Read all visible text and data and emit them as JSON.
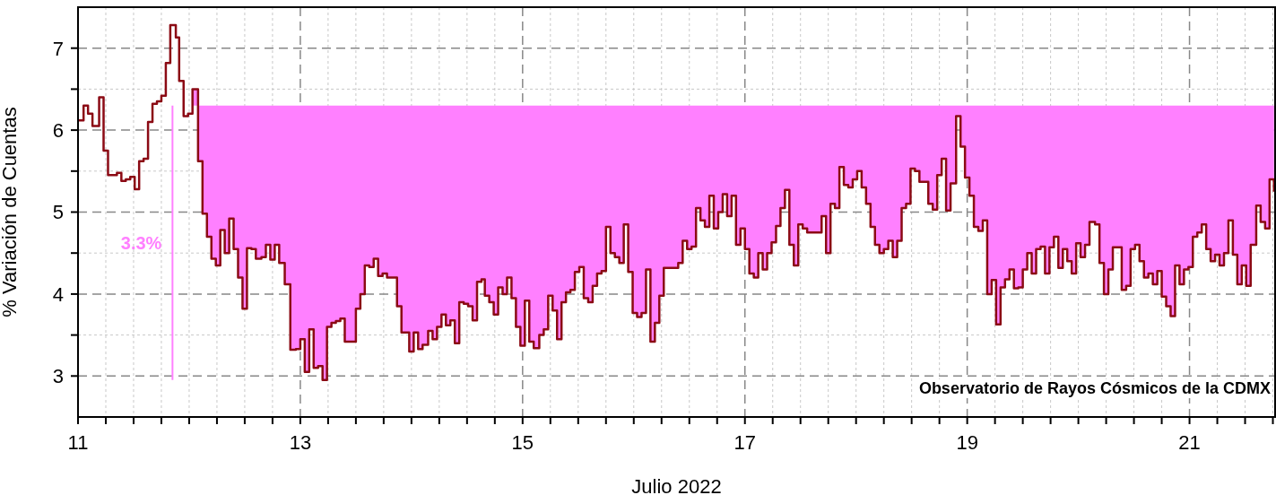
{
  "chart_data": {
    "type": "step",
    "xlabel": "Julio 2022",
    "ylabel": "% Variación de Cuentas",
    "xlim": [
      11,
      21.77
    ],
    "ylim": [
      2.5,
      7.5
    ],
    "xticks": [
      11,
      {
        "value": 11.25,
        "label": null
      },
      {
        "value": 11.5,
        "label": null
      },
      {
        "value": 11.75,
        "label": null
      },
      {
        "value": 12,
        "label": null
      },
      {
        "value": 12.25,
        "label": null
      },
      {
        "value": 12.5,
        "label": null
      },
      {
        "value": 12.75,
        "label": null
      },
      13,
      {
        "value": 13.25,
        "label": null
      },
      {
        "value": 13.5,
        "label": null
      },
      {
        "value": 13.75,
        "label": null
      },
      {
        "value": 14,
        "label": null
      },
      {
        "value": 14.25,
        "label": null
      },
      {
        "value": 14.5,
        "label": null
      },
      {
        "value": 14.75,
        "label": null
      },
      15,
      {
        "value": 15.25,
        "label": null
      },
      {
        "value": 15.5,
        "label": null
      },
      {
        "value": 15.75,
        "label": null
      },
      {
        "value": 16,
        "label": null
      },
      {
        "value": 16.25,
        "label": null
      },
      {
        "value": 16.5,
        "label": null
      },
      {
        "value": 16.75,
        "label": null
      },
      17,
      {
        "value": 17.25,
        "label": null
      },
      {
        "value": 17.5,
        "label": null
      },
      {
        "value": 17.75,
        "label": null
      },
      {
        "value": 18,
        "label": null
      },
      {
        "value": 18.25,
        "label": null
      },
      {
        "value": 18.5,
        "label": null
      },
      {
        "value": 18.75,
        "label": null
      },
      19,
      {
        "value": 19.25,
        "label": null
      },
      {
        "value": 19.5,
        "label": null
      },
      {
        "value": 19.75,
        "label": null
      },
      {
        "value": 20,
        "label": null
      },
      {
        "value": 20.25,
        "label": null
      },
      {
        "value": 20.5,
        "label": null
      },
      {
        "value": 20.75,
        "label": null
      },
      21,
      {
        "value": 21.25,
        "label": null
      },
      {
        "value": 21.5,
        "label": null
      },
      {
        "value": 21.75,
        "label": null
      }
    ],
    "yticks": [
      3,
      {
        "value": 3.5,
        "label": null
      },
      4,
      {
        "value": 4.5,
        "label": null
      },
      5,
      {
        "value": 5.5,
        "label": null
      },
      6,
      {
        "value": 6.5,
        "label": null
      },
      7
    ],
    "grid": true,
    "legend": false,
    "marker": "none",
    "line_style": "solid",
    "annotations": [
      "3.3%",
      "Observatorio de Rayos Cósmicos de la CDMX"
    ],
    "series": [
      {
        "color": "#8b0a14",
        "x": [
          11.0,
          11.05,
          11.09,
          11.13,
          11.19,
          11.23,
          11.27,
          11.35,
          11.39,
          11.43,
          11.47,
          11.51,
          11.55,
          11.59,
          11.63,
          11.67,
          11.71,
          11.75,
          11.79,
          11.83,
          11.88,
          11.91,
          11.95,
          11.99,
          12.03,
          12.08,
          12.12,
          12.16,
          12.2,
          12.24,
          12.28,
          12.32,
          12.36,
          12.4,
          12.44,
          12.48,
          12.52,
          12.56,
          12.6,
          12.65,
          12.69,
          12.73,
          12.77,
          12.81,
          12.86,
          12.91,
          12.96,
          13.0,
          13.04,
          13.08,
          13.12,
          13.16,
          13.2,
          13.24,
          13.28,
          13.32,
          13.36,
          13.4,
          13.5,
          13.54,
          13.58,
          13.62,
          13.66,
          13.7,
          13.74,
          13.78,
          13.87,
          13.91,
          13.98,
          14.02,
          14.06,
          14.1,
          14.15,
          14.19,
          14.23,
          14.27,
          14.31,
          14.35,
          14.39,
          14.43,
          14.47,
          14.51,
          14.55,
          14.59,
          14.63,
          14.66,
          14.7,
          14.74,
          14.78,
          14.82,
          14.86,
          14.9,
          14.94,
          14.98,
          15.02,
          15.06,
          15.1,
          15.15,
          15.19,
          15.23,
          15.27,
          15.31,
          15.35,
          15.39,
          15.43,
          15.47,
          15.51,
          15.55,
          15.59,
          15.63,
          15.67,
          15.71,
          15.75,
          15.79,
          15.83,
          15.87,
          15.91,
          15.95,
          15.99,
          16.03,
          16.07,
          16.11,
          16.15,
          16.19,
          16.23,
          16.27,
          16.4,
          16.44,
          16.48,
          16.52,
          16.56,
          16.6,
          16.64,
          16.68,
          16.72,
          16.76,
          16.8,
          16.84,
          16.88,
          16.92,
          16.96,
          17.0,
          17.04,
          17.08,
          17.12,
          17.16,
          17.2,
          17.24,
          17.28,
          17.32,
          17.36,
          17.4,
          17.44,
          17.48,
          17.52,
          17.56,
          17.69,
          17.73,
          17.77,
          17.81,
          17.85,
          17.89,
          17.93,
          17.97,
          18.01,
          18.05,
          18.09,
          18.13,
          18.17,
          18.21,
          18.25,
          18.29,
          18.33,
          18.37,
          18.41,
          18.45,
          18.49,
          18.53,
          18.57,
          18.65,
          18.69,
          18.73,
          18.77,
          18.81,
          18.85,
          18.9,
          18.94,
          18.98,
          19.02,
          19.06,
          19.1,
          19.14,
          19.18,
          19.22,
          19.26,
          19.3,
          19.34,
          19.38,
          19.42,
          19.46,
          19.5,
          19.54,
          19.58,
          19.62,
          19.66,
          19.7,
          19.74,
          19.78,
          19.82,
          19.86,
          19.9,
          19.94,
          19.98,
          20.02,
          20.06,
          20.1,
          20.15,
          20.19,
          20.23,
          20.27,
          20.31,
          20.39,
          20.43,
          20.47,
          20.51,
          20.55,
          20.59,
          20.63,
          20.67,
          20.71,
          20.75,
          20.79,
          20.83,
          20.87,
          20.91,
          20.95,
          20.99,
          21.03,
          21.07,
          21.11,
          21.15,
          21.19,
          21.23,
          21.27,
          21.31,
          21.35,
          21.39,
          21.43,
          21.47,
          21.51,
          21.55,
          21.6,
          21.64,
          21.68,
          21.72,
          21.76
        ],
        "values": [
          6.12,
          6.3,
          6.2,
          6.05,
          6.4,
          5.75,
          5.45,
          5.48,
          5.38,
          5.4,
          5.43,
          5.28,
          5.62,
          5.65,
          6.1,
          6.32,
          6.35,
          6.42,
          6.82,
          7.28,
          7.13,
          6.6,
          6.17,
          6.2,
          6.5,
          5.62,
          4.98,
          4.7,
          4.43,
          4.35,
          4.78,
          4.5,
          4.92,
          4.55,
          4.2,
          3.82,
          4.56,
          4.55,
          4.43,
          4.45,
          4.6,
          4.42,
          4.6,
          4.38,
          4.12,
          3.32,
          3.33,
          3.45,
          3.05,
          3.57,
          3.1,
          3.12,
          2.95,
          3.6,
          3.65,
          3.67,
          3.7,
          3.42,
          3.82,
          4.0,
          4.35,
          4.33,
          4.43,
          4.22,
          4.25,
          4.2,
          3.85,
          3.53,
          3.3,
          3.53,
          3.33,
          3.38,
          3.55,
          3.45,
          3.6,
          3.75,
          3.62,
          3.68,
          3.4,
          3.9,
          3.88,
          3.85,
          3.68,
          4.15,
          4.18,
          3.98,
          3.9,
          3.75,
          4.08,
          4.0,
          4.2,
          3.95,
          3.6,
          3.37,
          3.92,
          3.42,
          3.34,
          3.5,
          3.57,
          3.98,
          3.8,
          3.45,
          3.9,
          4.02,
          4.05,
          4.27,
          4.33,
          3.95,
          3.9,
          4.1,
          4.25,
          4.28,
          4.82,
          4.5,
          4.45,
          4.38,
          4.85,
          4.27,
          3.77,
          3.72,
          3.77,
          4.3,
          3.42,
          3.65,
          3.98,
          4.32,
          4.38,
          4.65,
          4.55,
          4.58,
          5.05,
          4.9,
          4.82,
          5.2,
          4.8,
          5.0,
          5.22,
          4.95,
          5.2,
          4.6,
          4.8,
          4.55,
          4.25,
          4.2,
          4.5,
          4.3,
          4.5,
          4.63,
          4.83,
          5.05,
          5.27,
          4.6,
          4.35,
          4.85,
          4.8,
          4.75,
          4.95,
          4.5,
          5.1,
          5.05,
          5.55,
          5.33,
          5.3,
          5.4,
          5.5,
          5.3,
          5.1,
          4.82,
          4.6,
          4.5,
          4.55,
          4.65,
          4.45,
          4.65,
          5.05,
          5.1,
          5.53,
          5.5,
          5.37,
          5.1,
          5.03,
          5.45,
          5.65,
          5.02,
          5.35,
          6.17,
          5.8,
          5.42,
          5.2,
          4.82,
          4.77,
          4.9,
          4.0,
          4.17,
          3.63,
          4.08,
          4.18,
          4.3,
          4.07,
          4.08,
          4.3,
          4.5,
          4.25,
          4.55,
          4.58,
          4.25,
          4.57,
          4.7,
          4.32,
          4.55,
          4.4,
          4.25,
          4.62,
          4.45,
          4.6,
          4.88,
          4.85,
          4.38,
          4.0,
          4.3,
          4.57,
          4.05,
          4.1,
          4.55,
          4.6,
          4.4,
          4.2,
          4.25,
          4.12,
          4.28,
          3.97,
          3.85,
          3.73,
          4.35,
          4.12,
          4.3,
          4.33,
          4.7,
          4.75,
          4.85,
          4.55,
          4.4,
          4.48,
          4.35,
          4.5,
          4.9,
          4.48,
          4.12,
          4.35,
          4.1,
          4.6,
          5.08,
          4.88,
          4.8,
          5.4,
          5.25
        ],
        "lower": [
          null,
          null,
          null,
          null,
          null,
          null,
          null,
          null,
          null,
          null,
          null,
          null,
          null,
          null,
          null,
          null,
          null,
          null,
          null,
          null,
          null,
          null,
          null,
          null,
          6.5,
          5.62,
          4.98,
          4.7,
          4.43,
          4.35,
          4.78,
          4.5,
          4.92,
          4.55,
          4.2,
          3.82,
          4.56,
          4.55,
          4.43,
          4.45,
          4.6,
          4.42,
          4.6,
          4.38,
          4.12,
          3.32,
          3.33,
          3.45,
          3.05,
          3.57,
          3.1,
          3.12,
          2.95,
          3.6,
          3.65,
          3.67,
          3.7,
          3.42,
          3.82,
          4.0,
          4.35,
          4.33,
          4.43,
          4.22,
          4.25,
          4.2,
          3.85,
          3.53,
          3.3,
          3.53,
          3.33,
          3.38,
          3.55,
          3.45,
          3.6,
          3.75,
          3.62,
          3.68,
          3.4,
          3.9,
          3.88,
          3.85,
          3.68,
          4.15,
          4.18,
          3.98,
          3.9,
          3.75,
          4.08,
          4.0,
          4.2,
          3.95,
          3.6,
          3.37,
          3.92,
          3.42,
          3.34,
          3.5,
          3.57,
          3.98,
          3.8,
          3.45,
          3.9,
          4.02,
          4.05,
          4.27,
          4.33,
          3.95,
          3.9,
          4.1,
          4.25,
          4.28,
          4.82,
          4.5,
          4.45,
          4.38,
          4.85,
          4.27,
          3.77,
          3.72,
          3.77,
          4.3,
          3.42,
          3.65,
          3.98,
          4.32,
          4.38,
          4.65,
          4.55,
          4.58,
          5.05,
          4.9,
          4.82,
          5.2,
          4.8,
          5.0,
          5.22,
          4.95,
          5.2,
          4.6,
          4.8,
          4.55,
          4.25,
          4.2,
          4.5,
          4.3,
          4.5,
          4.63,
          4.83,
          5.05,
          5.27,
          4.6,
          4.35,
          4.85,
          4.8,
          4.75,
          4.95,
          4.5,
          5.1,
          5.05,
          5.55,
          5.33,
          5.3,
          5.4,
          5.5,
          5.3,
          5.1,
          4.82,
          4.6,
          4.5,
          4.55,
          4.65,
          4.45,
          4.65,
          5.05,
          5.1,
          5.53,
          5.5,
          5.37,
          5.1,
          5.03,
          5.45,
          5.65,
          5.02,
          5.35,
          6.17,
          5.8,
          5.42,
          5.2,
          4.82,
          4.77,
          4.9,
          4.0,
          4.17,
          3.63,
          4.08,
          4.18,
          4.3,
          4.07,
          4.08,
          4.3,
          4.5,
          4.25,
          4.55,
          4.58,
          4.25,
          4.57,
          4.7,
          4.32,
          4.55,
          4.4,
          4.25,
          4.62,
          4.45,
          4.6,
          4.88,
          4.85,
          4.38,
          4.0,
          4.3,
          4.57,
          4.05,
          4.1,
          4.55,
          4.6,
          4.4,
          4.2,
          4.25,
          4.12,
          4.28,
          3.97,
          3.85,
          3.73,
          4.35,
          4.12,
          4.3,
          4.33,
          4.7,
          4.75,
          4.85,
          4.55,
          4.4,
          4.48,
          4.35,
          4.5,
          4.9,
          4.48,
          4.12,
          4.35,
          4.1,
          4.6,
          5.08,
          4.88,
          4.8,
          5.4,
          5.25
        ],
        "upper": [
          null,
          null,
          null,
          null,
          null,
          null,
          null,
          null,
          null,
          null,
          null,
          null,
          null,
          null,
          null,
          null,
          null,
          null,
          null,
          null,
          null,
          null,
          null,
          null,
          6.3,
          6.3,
          6.3,
          6.3,
          6.3,
          6.3,
          6.3,
          6.3,
          6.3,
          6.3,
          6.3,
          6.3,
          6.3,
          6.3,
          6.3,
          6.3,
          6.3,
          6.3,
          6.3,
          6.3,
          6.3,
          6.3,
          6.3,
          6.3,
          6.3,
          6.3,
          6.3,
          6.3,
          6.3,
          6.3,
          6.3,
          6.3,
          6.3,
          6.3,
          6.3,
          6.3,
          6.3,
          6.3,
          6.3,
          6.3,
          6.3,
          6.3,
          6.3,
          6.3,
          6.3,
          6.3,
          6.3,
          6.3,
          6.3,
          6.3,
          6.3,
          6.3,
          6.3,
          6.3,
          6.3,
          6.3,
          6.3,
          6.3,
          6.3,
          6.3,
          6.3,
          6.3,
          6.3,
          6.3,
          6.3,
          6.3,
          6.3,
          6.3,
          6.3,
          6.3,
          6.3,
          6.3,
          6.3,
          6.3,
          6.3,
          6.3,
          6.3,
          6.3,
          6.3,
          6.3,
          6.3,
          6.3,
          6.3,
          6.3,
          6.3,
          6.3,
          6.3,
          6.3,
          6.3,
          6.3,
          6.3,
          6.3,
          6.3,
          6.3,
          6.3,
          6.3,
          6.3,
          6.3,
          6.3,
          6.3,
          6.3,
          6.3,
          6.3,
          6.3,
          6.3,
          6.3,
          6.3,
          6.3,
          6.3,
          6.3,
          6.3,
          6.3,
          6.3,
          6.3,
          6.3,
          6.3,
          6.3,
          6.3,
          6.3,
          6.3,
          6.3,
          6.3,
          6.3,
          6.3,
          6.3,
          6.3,
          6.3,
          6.3,
          6.3,
          6.3,
          6.3,
          6.3,
          6.3,
          6.3,
          6.3,
          6.3,
          6.3,
          6.3,
          6.3,
          6.3,
          6.3,
          6.3,
          6.3,
          6.3,
          6.3,
          6.3,
          6.3,
          6.3,
          6.3,
          6.3,
          6.3,
          6.3,
          6.3,
          6.3,
          6.3,
          6.3,
          6.3,
          6.3,
          6.3,
          6.3,
          6.3,
          6.3,
          6.3,
          6.3,
          6.3,
          6.3,
          6.3,
          6.3,
          6.3,
          6.3,
          6.3,
          6.3,
          6.3,
          6.3,
          6.3,
          6.3,
          6.3,
          6.3,
          6.3,
          6.3,
          6.3,
          6.3,
          6.3,
          6.3,
          6.3,
          6.3,
          6.3,
          6.3,
          6.3,
          6.3,
          6.3,
          6.3,
          6.3,
          6.3,
          6.3,
          6.3,
          6.3,
          6.3,
          6.3,
          6.3,
          6.3,
          6.3,
          6.3,
          6.3,
          6.3,
          6.3,
          6.3,
          6.3,
          6.3,
          6.3,
          6.3,
          6.3,
          6.3,
          6.3,
          6.3,
          6.3,
          6.3,
          6.3,
          6.3,
          6.3,
          6.3,
          6.3,
          6.3,
          6.3,
          6.3,
          6.3,
          6.3,
          6.3,
          6.3,
          6.3,
          6.3,
          6.3
        ]
      },
      {
        "type": "line",
        "color": "#ff80ff",
        "x": [
          11.85,
          11.85
        ],
        "values": [
          2.95,
          6.3
        ]
      }
    ]
  }
}
